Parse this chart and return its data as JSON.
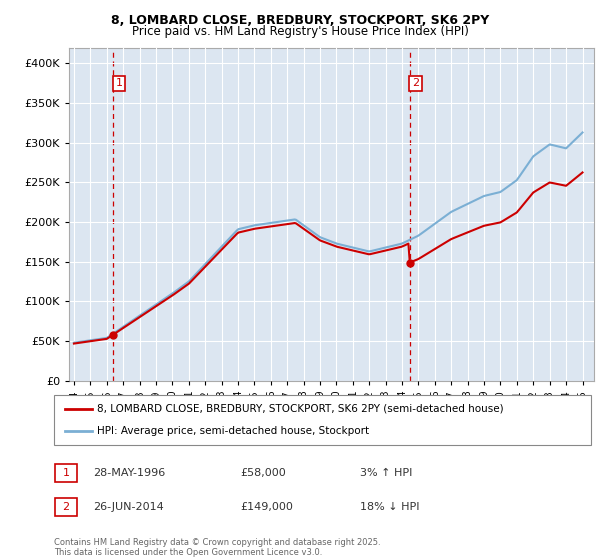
{
  "title": "8, LOMBARD CLOSE, BREDBURY, STOCKPORT, SK6 2PY",
  "subtitle": "Price paid vs. HM Land Registry's House Price Index (HPI)",
  "background_color": "#ffffff",
  "plot_bg_color": "#dce6f1",
  "grid_color": "#ffffff",
  "property_color": "#cc0000",
  "hpi_color": "#7bafd4",
  "transaction1": {
    "date": "28-MAY-1996",
    "price": 58000,
    "pct": "3%",
    "direction": "↑"
  },
  "transaction2": {
    "date": "26-JUN-2014",
    "price": 149000,
    "pct": "18%",
    "direction": "↓"
  },
  "legend_property": "8, LOMBARD CLOSE, BREDBURY, STOCKPORT, SK6 2PY (semi-detached house)",
  "legend_hpi": "HPI: Average price, semi-detached house, Stockport",
  "footer": "Contains HM Land Registry data © Crown copyright and database right 2025.\nThis data is licensed under the Open Government Licence v3.0.",
  "ylim": [
    0,
    420000
  ],
  "yticks": [
    0,
    50000,
    100000,
    150000,
    200000,
    250000,
    300000,
    350000,
    400000
  ],
  "xstart_year": 1994,
  "xend_year": 2025,
  "t1_year": 1996.38,
  "t1_price": 58000,
  "t2_year": 2014.46,
  "t2_price": 149000
}
